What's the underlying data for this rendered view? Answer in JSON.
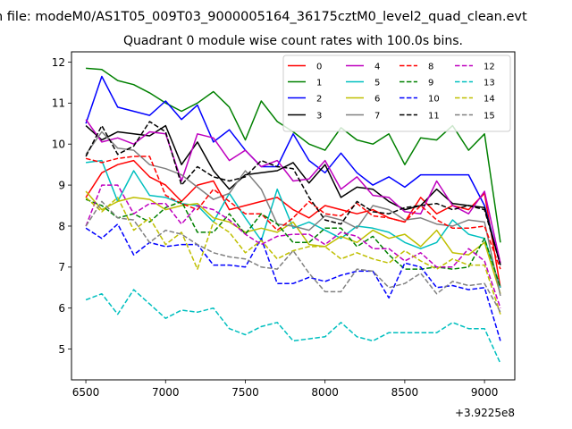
{
  "chart_data": {
    "type": "line",
    "suptitle": "n file: modeM0/AS1T05_009T03_9000005164_36175cztM0_level2_quad_clean.evt",
    "title": "Quadrant 0 module wise count rates with 100.0s bins.",
    "xlabel": "",
    "ylabel": "",
    "x_offset_label": "+3.9225e8",
    "xlim": [
      6410,
      9190
    ],
    "ylim": [
      4.25,
      12.25
    ],
    "xticks": [
      6500,
      7000,
      7500,
      8000,
      8500,
      9000
    ],
    "yticks": [
      5,
      6,
      7,
      8,
      9,
      10,
      11,
      12
    ],
    "grid": false,
    "legend": {
      "placement": "top-right",
      "columns": 4
    },
    "x": [
      6500,
      6600,
      6700,
      6800,
      6900,
      7000,
      7100,
      7200,
      7300,
      7400,
      7500,
      7600,
      7700,
      7800,
      7900,
      8000,
      8100,
      8200,
      8300,
      8400,
      8500,
      8600,
      8700,
      8800,
      8900,
      9000,
      9100
    ],
    "series": [
      {
        "name": "0",
        "color": "#ff0000",
        "dash": "solid",
        "values": [
          8.7,
          9.3,
          9.5,
          9.6,
          9.2,
          9.0,
          8.6,
          9.0,
          9.1,
          8.4,
          8.5,
          8.6,
          8.7,
          8.4,
          8.2,
          8.5,
          8.4,
          8.3,
          8.4,
          8.2,
          8.1,
          8.7,
          8.3,
          8.5,
          8.4,
          8.8,
          6.5
        ]
      },
      {
        "name": "1",
        "color": "#008000",
        "dash": "solid",
        "values": [
          11.85,
          11.82,
          11.55,
          11.45,
          11.25,
          11.0,
          10.8,
          11.0,
          11.28,
          10.9,
          10.1,
          11.05,
          10.55,
          10.3,
          10.0,
          9.85,
          10.4,
          10.1,
          10.0,
          10.25,
          9.5,
          10.15,
          10.1,
          10.45,
          9.85,
          10.25,
          7.6
        ]
      },
      {
        "name": "2",
        "color": "#0000ff",
        "dash": "solid",
        "values": [
          10.5,
          11.65,
          10.9,
          10.8,
          10.7,
          11.05,
          10.6,
          10.95,
          10.05,
          10.35,
          9.85,
          9.45,
          9.45,
          10.25,
          9.6,
          9.3,
          9.78,
          9.3,
          9.0,
          9.2,
          8.95,
          9.25,
          9.25,
          9.25,
          9.25,
          8.5,
          7.05
        ]
      },
      {
        "name": "3",
        "color": "#000000",
        "dash": "solid",
        "values": [
          10.45,
          10.1,
          10.3,
          10.25,
          10.2,
          10.45,
          9.5,
          10.05,
          9.35,
          8.9,
          9.25,
          9.3,
          9.35,
          9.55,
          9.05,
          9.5,
          8.7,
          8.95,
          8.9,
          8.6,
          8.4,
          8.5,
          8.9,
          8.55,
          8.5,
          8.45,
          7.05
        ]
      },
      {
        "name": "4",
        "color": "#bf00bf",
        "dash": "solid",
        "values": [
          10.6,
          10.05,
          10.15,
          10.0,
          10.3,
          10.25,
          9.1,
          10.25,
          10.15,
          9.6,
          9.85,
          9.45,
          9.6,
          9.1,
          9.15,
          9.6,
          8.9,
          9.2,
          8.75,
          8.7,
          8.35,
          8.3,
          9.1,
          8.5,
          8.3,
          8.85,
          7.1
        ]
      },
      {
        "name": "5",
        "color": "#00bfbf",
        "dash": "solid",
        "values": [
          9.55,
          9.6,
          8.6,
          9.35,
          8.75,
          8.7,
          8.55,
          8.5,
          8.1,
          8.8,
          8.2,
          7.65,
          8.9,
          7.95,
          8.1,
          7.9,
          7.7,
          8.0,
          7.95,
          7.85,
          7.6,
          7.45,
          7.6,
          8.15,
          7.8,
          7.7,
          6.5
        ]
      },
      {
        "name": "6",
        "color": "#bfbf00",
        "dash": "solid",
        "values": [
          8.85,
          8.4,
          8.6,
          8.7,
          8.65,
          8.4,
          8.5,
          8.55,
          8.2,
          8.1,
          7.85,
          7.95,
          7.85,
          8.1,
          7.55,
          7.5,
          7.75,
          7.6,
          7.9,
          7.7,
          7.8,
          7.5,
          7.9,
          7.35,
          7.3,
          7.6,
          6.35
        ]
      },
      {
        "name": "7",
        "color": "#808080",
        "dash": "solid",
        "values": [
          9.75,
          10.3,
          9.9,
          9.85,
          9.5,
          9.4,
          9.25,
          8.95,
          8.65,
          8.8,
          9.35,
          8.9,
          8.05,
          8.0,
          7.9,
          8.25,
          8.15,
          7.95,
          8.5,
          8.4,
          8.15,
          8.2,
          8.05,
          8.0,
          8.15,
          8.1,
          6.3
        ]
      },
      {
        "name": "8",
        "color": "#ff0000",
        "dash": "dashed",
        "values": [
          9.65,
          9.55,
          9.65,
          9.7,
          9.7,
          8.75,
          8.55,
          8.4,
          8.9,
          8.6,
          8.3,
          8.3,
          7.9,
          8.2,
          8.6,
          8.3,
          8.25,
          8.55,
          8.25,
          8.2,
          8.1,
          8.5,
          8.15,
          7.95,
          7.95,
          8.0,
          6.95
        ]
      },
      {
        "name": "9",
        "color": "#008000",
        "dash": "dashed",
        "values": [
          8.65,
          8.5,
          8.2,
          8.3,
          8.1,
          8.45,
          8.6,
          7.85,
          7.85,
          8.3,
          7.8,
          8.3,
          8.05,
          7.6,
          7.6,
          7.95,
          7.95,
          7.5,
          7.75,
          7.3,
          6.95,
          6.95,
          7.0,
          6.95,
          7.0,
          7.7,
          6.5
        ]
      },
      {
        "name": "10",
        "color": "#0000ff",
        "dash": "dashed",
        "values": [
          7.95,
          7.7,
          8.05,
          7.3,
          7.6,
          7.5,
          7.55,
          7.55,
          7.05,
          7.05,
          7.0,
          7.7,
          6.6,
          6.6,
          6.75,
          6.65,
          6.8,
          6.9,
          6.9,
          6.25,
          7.1,
          7.0,
          6.5,
          6.55,
          6.45,
          6.5,
          5.2
        ]
      },
      {
        "name": "11",
        "color": "#000000",
        "dash": "dashed",
        "values": [
          9.7,
          10.45,
          9.75,
          9.95,
          10.55,
          10.3,
          9.0,
          9.45,
          9.2,
          9.1,
          9.2,
          9.6,
          9.45,
          9.4,
          8.7,
          8.15,
          8.05,
          8.6,
          8.35,
          8.3,
          8.45,
          8.5,
          8.55,
          8.4,
          8.5,
          8.4,
          7.05
        ]
      },
      {
        "name": "12",
        "color": "#bf00bf",
        "dash": "dashed",
        "values": [
          8.0,
          9.0,
          9.0,
          8.3,
          8.55,
          8.55,
          8.05,
          8.5,
          8.4,
          8.15,
          7.8,
          7.55,
          7.75,
          7.8,
          7.8,
          7.55,
          7.85,
          7.75,
          7.45,
          7.45,
          7.15,
          7.35,
          7.0,
          7.0,
          7.45,
          7.15,
          6.0
        ]
      },
      {
        "name": "13",
        "color": "#00bfbf",
        "dash": "dashed",
        "values": [
          6.2,
          6.35,
          5.85,
          6.45,
          6.1,
          5.75,
          5.95,
          5.9,
          6.0,
          5.5,
          5.35,
          5.55,
          5.65,
          5.2,
          5.25,
          5.3,
          5.65,
          5.3,
          5.2,
          5.4,
          5.4,
          5.4,
          5.4,
          5.65,
          5.5,
          5.5,
          4.65
        ]
      },
      {
        "name": "14",
        "color": "#bfbf00",
        "dash": "dashed",
        "values": [
          8.7,
          8.35,
          8.7,
          7.9,
          8.2,
          7.55,
          7.85,
          6.95,
          8.1,
          7.85,
          7.35,
          7.65,
          7.2,
          7.4,
          7.5,
          7.5,
          7.2,
          7.35,
          7.2,
          7.1,
          7.4,
          7.15,
          6.95,
          7.2,
          7.05,
          7.05,
          5.85
        ]
      },
      {
        "name": "15",
        "color": "#808080",
        "dash": "dashed",
        "values": [
          8.0,
          8.6,
          8.2,
          8.15,
          7.6,
          7.9,
          7.8,
          7.55,
          7.35,
          7.25,
          7.2,
          7.0,
          6.95,
          7.4,
          6.85,
          6.4,
          6.4,
          6.95,
          6.9,
          6.5,
          6.6,
          6.85,
          6.35,
          6.65,
          6.55,
          6.6,
          5.9
        ]
      }
    ]
  }
}
